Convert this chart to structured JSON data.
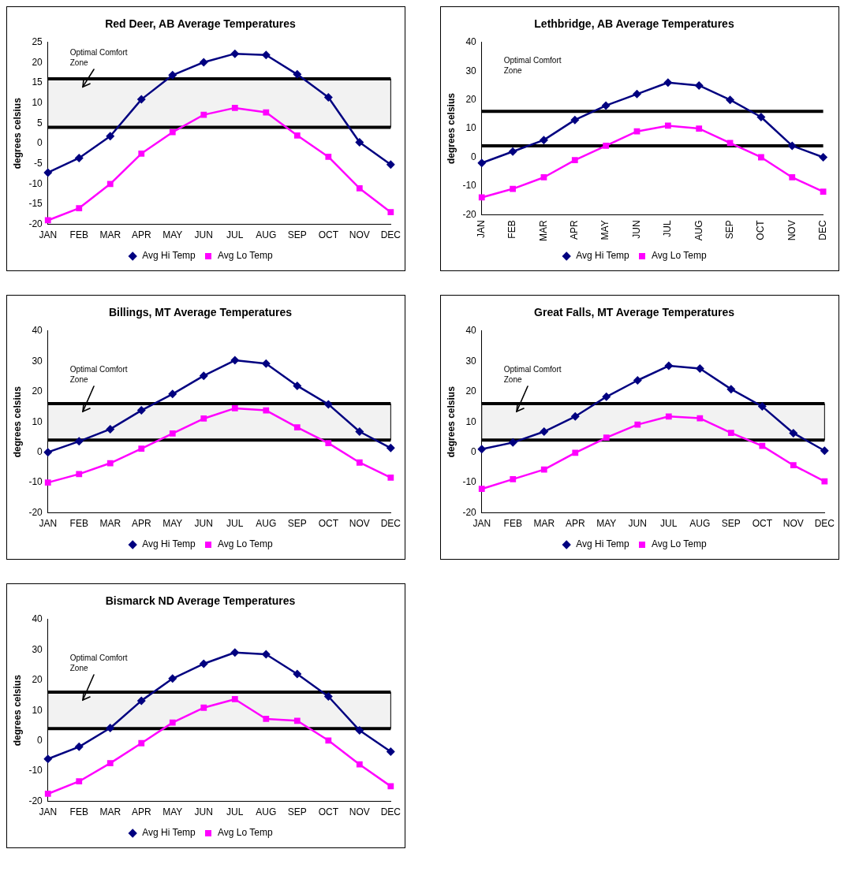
{
  "chart_data": [
    {
      "type": "line",
      "title": "Red Deer, AB Average Temperatures",
      "ylabel": "degrees celsius",
      "categories": [
        "JAN",
        "FEB",
        "MAR",
        "APR",
        "MAY",
        "JUN",
        "JUL",
        "AUG",
        "SEP",
        "OCT",
        "NOV",
        "DEC"
      ],
      "ylim": [
        -20,
        25
      ],
      "yticks": [
        -20,
        -15,
        -10,
        -5,
        0,
        5,
        10,
        15,
        20,
        25
      ],
      "grid": false,
      "legend": "bottom",
      "series": [
        {
          "name": "Avg Hi Temp",
          "color": "#000080",
          "marker": "diamond",
          "values": [
            -7.2,
            -3.6,
            1.8,
            10.9,
            16.9,
            20.1,
            22.2,
            21.9,
            17.1,
            11.4,
            0.3,
            -5.2
          ]
        },
        {
          "name": "Avg Lo Temp",
          "color": "#ff00ff",
          "marker": "square",
          "values": [
            -19,
            -16,
            -10,
            -2.5,
            2.8,
            7.1,
            8.8,
            7.7,
            2,
            -3.3,
            -11.1,
            -17
          ]
        }
      ],
      "ref_lines": [
        {
          "axis": "y",
          "value": 16,
          "color": "#000000"
        },
        {
          "axis": "y",
          "value": 4,
          "color": "#000000"
        }
      ],
      "bands": [
        {
          "axis": "y",
          "from": 4,
          "to": 16,
          "label": "Optimal Comfort Zone",
          "color": "#f2f2f2"
        }
      ]
    },
    {
      "type": "line",
      "title": "Lethbridge, AB Average Temperatures",
      "ylabel": "degrees celsius",
      "categories": [
        "JAN",
        "FEB",
        "MAR",
        "APR",
        "MAY",
        "JUN",
        "JUL",
        "AUG",
        "SEP",
        "OCT",
        "NOV",
        "DEC"
      ],
      "ylim": [
        -20,
        40
      ],
      "yticks": [
        -20,
        -10,
        0,
        10,
        20,
        30,
        40
      ],
      "grid": false,
      "legend": "bottom",
      "series": [
        {
          "name": "Avg Hi Temp",
          "color": "#000080",
          "marker": "diamond",
          "values": [
            -2,
            2,
            6,
            13,
            18,
            22,
            26,
            25,
            20,
            14,
            4,
            0
          ]
        },
        {
          "name": "Avg Lo Temp",
          "color": "#ff00ff",
          "marker": "square",
          "values": [
            -14,
            -11,
            -7,
            -1,
            4,
            9,
            11,
            10,
            5,
            0,
            -7,
            -12
          ]
        }
      ],
      "ref_lines": [
        {
          "axis": "y",
          "value": 16,
          "color": "#000000"
        },
        {
          "axis": "y",
          "value": 4,
          "color": "#000000"
        }
      ],
      "annotations": [
        "Optimal Comfort Zone"
      ]
    },
    {
      "type": "line",
      "title": "Billings, MT Average Temperatures",
      "ylabel": "degrees celsius",
      "categories": [
        "JAN",
        "FEB",
        "MAR",
        "APR",
        "MAY",
        "JUN",
        "JUL",
        "AUG",
        "SEP",
        "OCT",
        "NOV",
        "DEC"
      ],
      "ylim": [
        -20,
        40
      ],
      "yticks": [
        -20,
        -10,
        0,
        10,
        20,
        30,
        40
      ],
      "grid": false,
      "legend": "bottom",
      "series": [
        {
          "name": "Avg Hi Temp",
          "color": "#000080",
          "marker": "diamond",
          "values": [
            0,
            3.6,
            7.6,
            13.8,
            19.2,
            25.2,
            30.3,
            29.2,
            21.9,
            15.8,
            6.8,
            1.4
          ]
        },
        {
          "name": "Avg Lo Temp",
          "color": "#ff00ff",
          "marker": "square",
          "values": [
            -10,
            -7.2,
            -3.6,
            1.2,
            6.2,
            11.1,
            14.5,
            13.8,
            8.2,
            3,
            -3.4,
            -8.4
          ]
        }
      ],
      "ref_lines": [
        {
          "axis": "y",
          "value": 16,
          "color": "#000000"
        },
        {
          "axis": "y",
          "value": 4,
          "color": "#000000"
        }
      ],
      "bands": [
        {
          "axis": "y",
          "from": 4,
          "to": 16,
          "label": "Optimal Comfort Zone",
          "color": "#f2f2f2"
        }
      ]
    },
    {
      "type": "line",
      "title": "Great Falls, MT Average Temperatures",
      "ylabel": "degrees celsius",
      "categories": [
        "JAN",
        "FEB",
        "MAR",
        "APR",
        "MAY",
        "JUN",
        "JUL",
        "AUG",
        "SEP",
        "OCT",
        "NOV",
        "DEC"
      ],
      "ylim": [
        -20,
        40
      ],
      "yticks": [
        -20,
        -10,
        0,
        10,
        20,
        30,
        40
      ],
      "grid": false,
      "legend": "bottom",
      "series": [
        {
          "name": "Avg Hi Temp",
          "color": "#000080",
          "marker": "diamond",
          "values": [
            1,
            3.2,
            6.8,
            11.8,
            18.3,
            23.7,
            28.5,
            27.6,
            20.8,
            15.1,
            6.3,
            0.5
          ]
        },
        {
          "name": "Avg Lo Temp",
          "color": "#ff00ff",
          "marker": "square",
          "values": [
            -12.1,
            -8.9,
            -5.7,
            -0.2,
            4.8,
            9.1,
            11.8,
            11.2,
            6.4,
            2.1,
            -4.3,
            -9.6
          ]
        }
      ],
      "ref_lines": [
        {
          "axis": "y",
          "value": 16,
          "color": "#000000"
        },
        {
          "axis": "y",
          "value": 4,
          "color": "#000000"
        }
      ],
      "bands": [
        {
          "axis": "y",
          "from": 4,
          "to": 16,
          "label": "Optimal Comfort Zone",
          "color": "#f2f2f2"
        }
      ]
    },
    {
      "type": "line",
      "title": "Bismarck ND Average Temperatures",
      "ylabel": "degrees celsius",
      "categories": [
        "JAN",
        "FEB",
        "MAR",
        "APR",
        "MAY",
        "JUN",
        "JUL",
        "AUG",
        "SEP",
        "OCT",
        "NOV",
        "DEC"
      ],
      "ylim": [
        -20,
        40
      ],
      "yticks": [
        -20,
        -10,
        0,
        10,
        20,
        30,
        40
      ],
      "grid": false,
      "legend": "bottom",
      "series": [
        {
          "name": "Avg Hi Temp",
          "color": "#000080",
          "marker": "diamond",
          "values": [
            -6,
            -2,
            4.2,
            13.2,
            20.5,
            25.4,
            29.1,
            28.5,
            22,
            14.6,
            3.4,
            -3.6
          ]
        },
        {
          "name": "Avg Lo Temp",
          "color": "#ff00ff",
          "marker": "square",
          "values": [
            -17.5,
            -13.4,
            -7.4,
            -0.8,
            6,
            10.9,
            13.7,
            7.2,
            6.6,
            0.1,
            -7.8,
            -15
          ]
        }
      ],
      "ref_lines": [
        {
          "axis": "y",
          "value": 16,
          "color": "#000000"
        },
        {
          "axis": "y",
          "value": 4,
          "color": "#000000"
        }
      ],
      "bands": [
        {
          "axis": "y",
          "from": 4,
          "to": 16,
          "label": "Optimal Comfort Zone",
          "color": "#f2f2f2"
        }
      ]
    }
  ]
}
